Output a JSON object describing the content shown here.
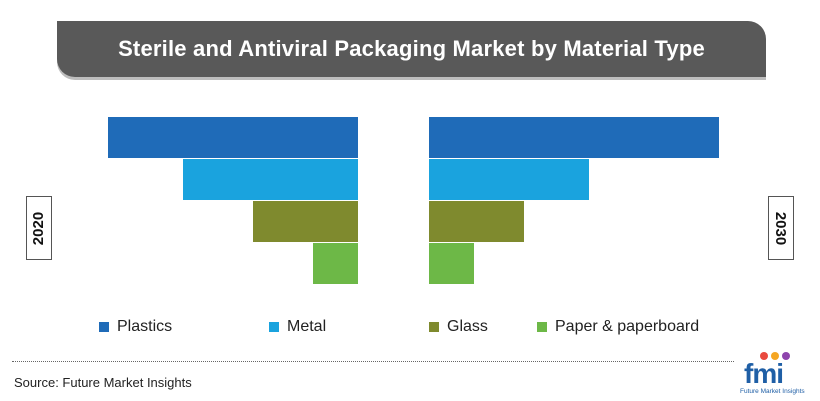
{
  "title": "Sterile and Antiviral Packaging Market by Material Type",
  "source": "Source: Future Market Insights",
  "logo": {
    "mark": "fmi",
    "tagline": "Future Market Insights"
  },
  "colors": {
    "banner": "#595959",
    "plastics": "#1f6bb8",
    "metal": "#1aa3de",
    "glass": "#7f8a2e",
    "paper": "#6db847"
  },
  "chart_data": {
    "type": "bar",
    "orientation": "horizontal-mirrored",
    "categories": [
      "Plastics",
      "Metal",
      "Glass",
      "Paper & paperboard"
    ],
    "series": [
      {
        "name": "2020",
        "side": "left",
        "values": [
          50,
          35,
          21,
          9
        ]
      },
      {
        "name": "2030",
        "side": "right",
        "values": [
          58,
          32,
          19,
          9
        ]
      }
    ],
    "xlabel": "",
    "ylabel": "",
    "grid": false,
    "legend": "bottom"
  }
}
